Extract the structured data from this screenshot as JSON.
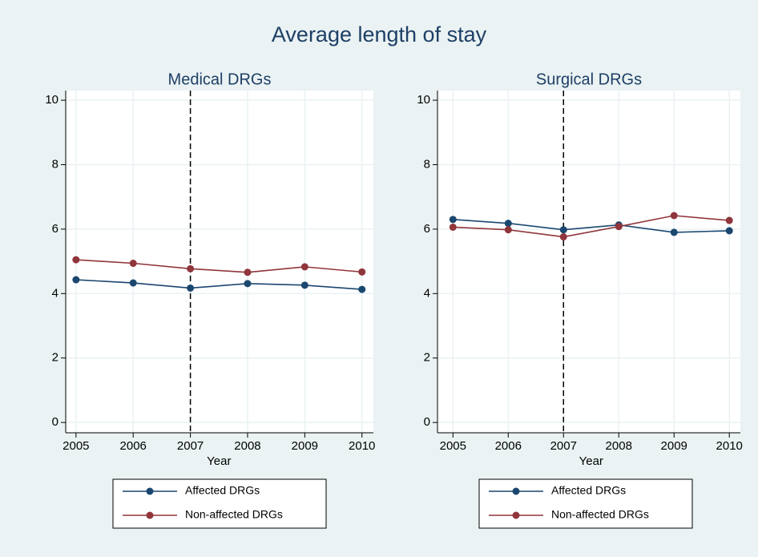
{
  "title": "Average length of stay",
  "chart_data": [
    {
      "type": "line",
      "title": "Medical DRGs",
      "x_label": "Year",
      "x": [
        2005,
        2006,
        2007,
        2008,
        2009,
        2010
      ],
      "series": [
        {
          "name": "Affected DRGs",
          "color": "#1a476f",
          "values": [
            4.43,
            4.33,
            4.17,
            4.31,
            4.26,
            4.13
          ]
        },
        {
          "name": "Non-affected DRGs",
          "color": "#90353b",
          "values": [
            5.05,
            4.94,
            4.77,
            4.66,
            4.83,
            4.67
          ]
        }
      ],
      "xlim": [
        2004.82,
        2010.2
      ],
      "xticks": [
        2005,
        2006,
        2007,
        2008,
        2009,
        2010
      ],
      "ylim": [
        -0.32,
        10.3
      ],
      "yticks": [
        0,
        2,
        4,
        6,
        8,
        10
      ],
      "grid": true,
      "vline": 2007,
      "legend": "bottom"
    },
    {
      "type": "line",
      "title": "Surgical DRGs",
      "x_label": "Year",
      "x": [
        2005,
        2006,
        2007,
        2008,
        2009,
        2010
      ],
      "series": [
        {
          "name": "Affected DRGs",
          "color": "#1a476f",
          "values": [
            6.3,
            6.18,
            5.98,
            6.13,
            5.9,
            5.95
          ]
        },
        {
          "name": "Non-affected DRGs",
          "color": "#90353b",
          "values": [
            6.06,
            5.98,
            5.76,
            6.08,
            6.42,
            6.27
          ]
        }
      ],
      "xlim": [
        2004.72,
        2010.2
      ],
      "xticks": [
        2005,
        2006,
        2007,
        2008,
        2009,
        2010
      ],
      "ylim": [
        -0.32,
        10.3
      ],
      "yticks": [
        0,
        2,
        4,
        6,
        8,
        10
      ],
      "grid": true,
      "vline": 2007,
      "legend": "bottom"
    }
  ]
}
